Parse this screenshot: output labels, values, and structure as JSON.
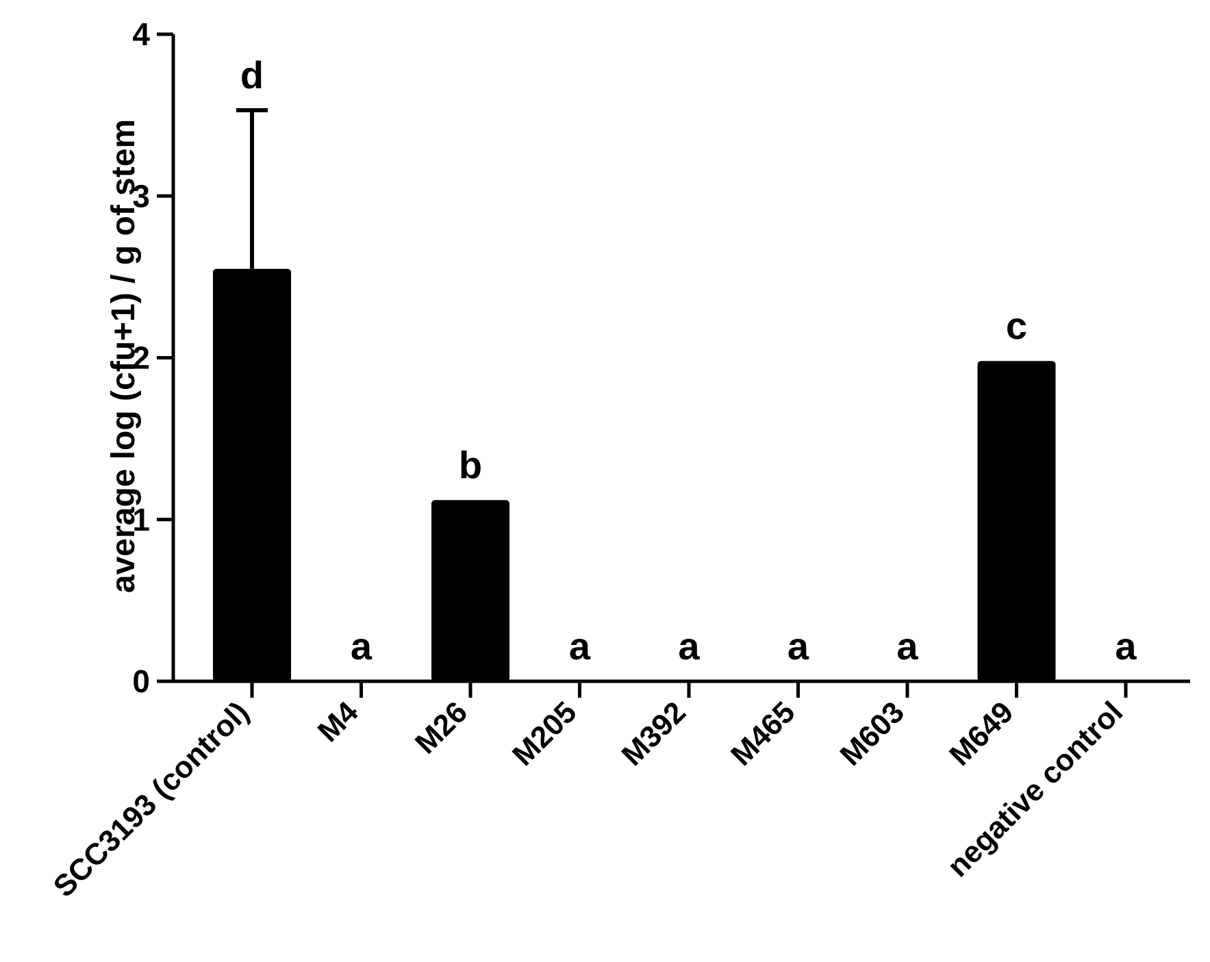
{
  "chart_data": {
    "type": "bar",
    "title": "",
    "xlabel": "",
    "ylabel": "average log (cfu+1) / g of stem",
    "ylim": [
      0,
      4
    ],
    "yticks": [
      "0",
      "1",
      "2",
      "3",
      "4"
    ],
    "grid": false,
    "legend": "none",
    "bar_color": "#000000",
    "categories": [
      "SCC3193 (control)",
      "M4",
      "M26",
      "M205",
      "M392",
      "M465",
      "M603",
      "M649",
      "negative control"
    ],
    "values": [
      2.55,
      0,
      1.12,
      0,
      0,
      0,
      0,
      1.98,
      0
    ],
    "error_upper": [
      3.53,
      null,
      null,
      null,
      null,
      null,
      null,
      null,
      null
    ],
    "significance_letters": [
      "d",
      "a",
      "b",
      "a",
      "a",
      "a",
      "a",
      "c",
      "a"
    ]
  }
}
